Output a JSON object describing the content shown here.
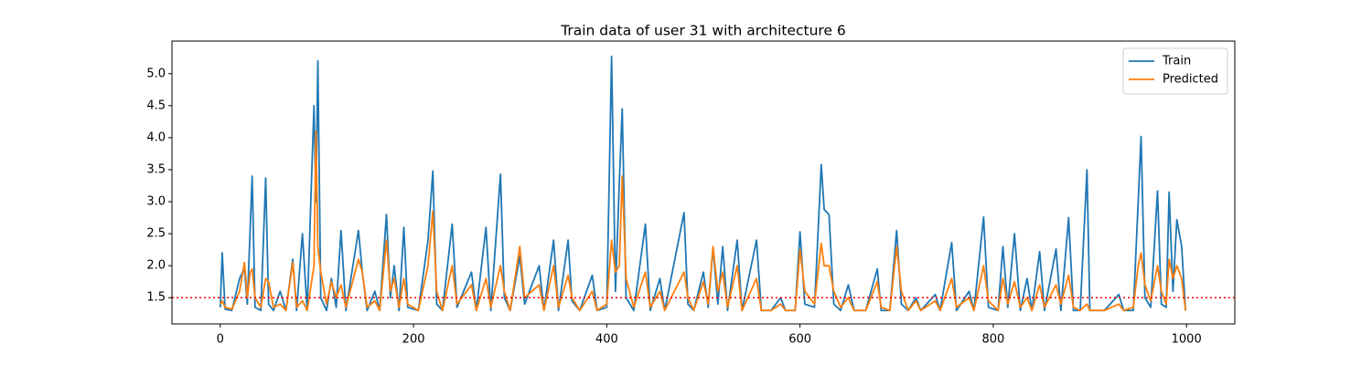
{
  "chart_data": {
    "type": "line",
    "title": "Train data of user 31 with architecture 6",
    "x": [
      0,
      2,
      5,
      12,
      20,
      25,
      28,
      31,
      33,
      36,
      42,
      47,
      50,
      55,
      62,
      68,
      75,
      79,
      85,
      90,
      97,
      99,
      101,
      104,
      110,
      115,
      120,
      125,
      130,
      143,
      147,
      152,
      160,
      165,
      172,
      176,
      180,
      185,
      190,
      194,
      205,
      215,
      220,
      224,
      230,
      240,
      245,
      260,
      265,
      275,
      280,
      290,
      294,
      300,
      310,
      315,
      330,
      335,
      345,
      350,
      360,
      364,
      372,
      385,
      390,
      400,
      405,
      409,
      413,
      416,
      420,
      428,
      440,
      445,
      455,
      460,
      480,
      484,
      490,
      500,
      505,
      510,
      515,
      520,
      525,
      535,
      540,
      555,
      560,
      570,
      580,
      585,
      595,
      600,
      605,
      615,
      622,
      625,
      630,
      635,
      642,
      650,
      656,
      668,
      680,
      684,
      693,
      700,
      705,
      712,
      720,
      725,
      740,
      745,
      757,
      762,
      775,
      780,
      790,
      795,
      805,
      810,
      815,
      822,
      828,
      835,
      840,
      848,
      853,
      865,
      870,
      878,
      883,
      890,
      897,
      900,
      915,
      930,
      935,
      945,
      950,
      953,
      957,
      963,
      970,
      974,
      979,
      982,
      986,
      990,
      995,
      999
    ],
    "series": [
      {
        "name": "Train",
        "color": "#1f77b4",
        "values": [
          1.35,
          2.2,
          1.32,
          1.3,
          1.8,
          1.95,
          1.4,
          2.6,
          3.4,
          1.35,
          1.3,
          3.37,
          1.4,
          1.3,
          1.6,
          1.3,
          2.1,
          1.3,
          2.5,
          1.3,
          4.5,
          3.0,
          5.2,
          1.5,
          1.3,
          1.8,
          1.35,
          2.55,
          1.3,
          2.55,
          1.9,
          1.3,
          1.6,
          1.3,
          2.8,
          1.5,
          2.0,
          1.3,
          2.6,
          1.35,
          1.3,
          2.4,
          3.48,
          1.4,
          1.3,
          2.65,
          1.35,
          1.9,
          1.3,
          2.6,
          1.3,
          3.43,
          1.5,
          1.3,
          2.15,
          1.4,
          2.0,
          1.3,
          2.4,
          1.3,
          2.4,
          1.45,
          1.3,
          1.85,
          1.3,
          1.35,
          5.27,
          1.6,
          3.3,
          4.45,
          1.5,
          1.3,
          2.65,
          1.3,
          1.8,
          1.3,
          2.83,
          1.4,
          1.3,
          1.9,
          1.35,
          2.28,
          1.4,
          2.3,
          1.3,
          2.4,
          1.3,
          2.4,
          1.3,
          1.3,
          1.5,
          1.3,
          1.3,
          2.53,
          1.4,
          1.35,
          3.58,
          2.88,
          2.8,
          1.4,
          1.3,
          1.7,
          1.3,
          1.3,
          1.95,
          1.3,
          1.3,
          2.55,
          1.4,
          1.3,
          1.5,
          1.3,
          1.55,
          1.3,
          2.36,
          1.3,
          1.6,
          1.3,
          2.76,
          1.35,
          1.3,
          2.3,
          1.35,
          2.5,
          1.3,
          1.8,
          1.3,
          2.22,
          1.3,
          2.26,
          1.3,
          2.75,
          1.3,
          1.3,
          3.5,
          1.3,
          1.3,
          1.55,
          1.3,
          1.3,
          3.0,
          4.02,
          1.5,
          1.35,
          3.17,
          1.4,
          1.35,
          3.15,
          1.6,
          2.72,
          2.3,
          1.3
        ]
      },
      {
        "name": "Predicted",
        "color": "#ff7f0e",
        "values": [
          1.4,
          1.45,
          1.35,
          1.32,
          1.6,
          2.05,
          1.5,
          1.9,
          1.95,
          1.5,
          1.35,
          1.8,
          1.75,
          1.35,
          1.4,
          1.3,
          2.05,
          1.35,
          1.45,
          1.3,
          2.0,
          4.1,
          2.3,
          1.9,
          1.4,
          1.75,
          1.5,
          1.7,
          1.35,
          2.1,
          1.9,
          1.35,
          1.45,
          1.3,
          2.4,
          1.6,
          1.8,
          1.35,
          1.8,
          1.4,
          1.3,
          2.0,
          2.85,
          1.6,
          1.3,
          2.0,
          1.4,
          1.7,
          1.3,
          1.8,
          1.35,
          2.0,
          1.6,
          1.3,
          2.3,
          1.5,
          1.7,
          1.3,
          2.0,
          1.35,
          1.85,
          1.5,
          1.3,
          1.6,
          1.3,
          1.4,
          2.4,
          1.9,
          2.0,
          3.4,
          1.8,
          1.35,
          1.9,
          1.35,
          1.6,
          1.3,
          1.9,
          1.5,
          1.3,
          1.75,
          1.4,
          2.3,
          1.6,
          1.9,
          1.35,
          2.0,
          1.3,
          1.8,
          1.3,
          1.3,
          1.4,
          1.3,
          1.3,
          2.25,
          1.6,
          1.4,
          2.35,
          2.0,
          2.0,
          1.6,
          1.35,
          1.5,
          1.3,
          1.3,
          1.75,
          1.35,
          1.3,
          2.3,
          1.6,
          1.3,
          1.45,
          1.3,
          1.45,
          1.3,
          1.8,
          1.35,
          1.5,
          1.3,
          2.0,
          1.45,
          1.3,
          1.8,
          1.4,
          1.75,
          1.35,
          1.5,
          1.3,
          1.7,
          1.35,
          1.7,
          1.4,
          1.85,
          1.35,
          1.3,
          1.4,
          1.3,
          1.3,
          1.4,
          1.3,
          1.35,
          2.0,
          2.2,
          1.7,
          1.45,
          2.0,
          1.6,
          1.4,
          2.1,
          1.8,
          2.0,
          1.8,
          1.3
        ]
      }
    ],
    "reference_line": {
      "value": 1.5,
      "color": "#ff0000",
      "style": "dotted"
    },
    "xlim": [
      -50,
      1050
    ],
    "ylim": [
      1.09,
      5.51
    ],
    "xticks": [
      0,
      200,
      400,
      600,
      800,
      1000
    ],
    "yticks": [
      1.5,
      {
        "value": 2,
        "label": "2.0"
      },
      2.5,
      {
        "value": 3,
        "label": "3.0"
      },
      3.5,
      {
        "value": 4,
        "label": "4.0"
      },
      4.5,
      {
        "value": 5,
        "label": "5.0"
      }
    ],
    "grid": false,
    "legend": "upper right"
  }
}
